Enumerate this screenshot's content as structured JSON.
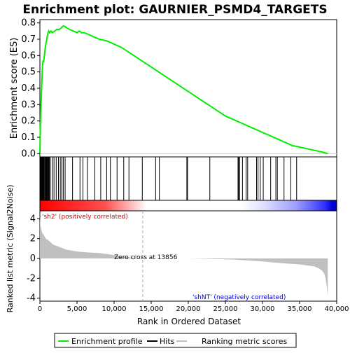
{
  "chart_data": {
    "type": "line",
    "title": "Enrichment plot: GAURNIER_PSMD4_TARGETS",
    "ylabel": "Enrichment score (ES)",
    "es_ylim": [
      -0.02,
      0.82
    ],
    "es_yticks": [
      "0.0",
      "0.1",
      "0.2",
      "0.3",
      "0.4",
      "0.5",
      "0.6",
      "0.7",
      "0.8"
    ],
    "es_ytick_values": [
      0,
      0.1,
      0.2,
      0.3,
      0.4,
      0.5,
      0.6,
      0.7,
      0.8
    ],
    "xlabel": "Rank in Ordered Dataset",
    "xlim": [
      0,
      40000
    ],
    "xticks": [
      "0",
      "5,000",
      "10,000",
      "15,000",
      "20,000",
      "25,000",
      "30,000",
      "35,000",
      "40,000"
    ],
    "xtick_values": [
      0,
      5000,
      10000,
      15000,
      20000,
      25000,
      30000,
      35000,
      40000
    ],
    "ylabel_metric": "Ranked list metric (Signal2Noise)",
    "metric_ylim": [
      -4.3,
      4.8
    ],
    "metric_yticks": [
      "4",
      "2",
      "0",
      "-2",
      "-4"
    ],
    "metric_ytick_values": [
      4,
      2,
      0,
      -2,
      -4
    ],
    "positive_label": "'sh2' (positively correlated)",
    "negative_label": "'shNT' (negatively correlated)",
    "zero_cross_label": "Zero cross at 13856",
    "zero_cross": 13856,
    "dataset_size": 38800,
    "legend": [
      "Enrichment profile",
      "Hits",
      "Ranking metric scores"
    ],
    "legend_colors": {
      "enrichment": "#00ee00",
      "hits": "#000000",
      "metric": "#c0c0c0"
    },
    "series": [
      {
        "name": "Enrichment profile",
        "x": [
          0,
          50,
          100,
          150,
          200,
          250,
          300,
          350,
          400,
          450,
          500,
          600,
          700,
          800,
          900,
          1000,
          1100,
          1200,
          1300,
          1500,
          1700,
          2000,
          2300,
          2600,
          2900,
          3100,
          3300,
          3600,
          4000,
          4500,
          5000,
          5300,
          5600,
          6000,
          6500,
          7000,
          8000,
          9000,
          10000,
          11000,
          12000,
          13000,
          14000,
          15000,
          16000,
          17000,
          18000,
          19000,
          20000,
          21000,
          22000,
          23000,
          24000,
          25000,
          26000,
          27000,
          28000,
          29000,
          30000,
          31000,
          32000,
          33000,
          34000,
          35000,
          36000,
          37000,
          38000,
          38800
        ],
        "y": [
          0.0,
          0.14,
          0.24,
          0.3,
          0.36,
          0.42,
          0.48,
          0.53,
          0.56,
          0.57,
          0.56,
          0.6,
          0.64,
          0.67,
          0.69,
          0.72,
          0.74,
          0.75,
          0.74,
          0.75,
          0.74,
          0.75,
          0.76,
          0.76,
          0.77,
          0.78,
          0.78,
          0.77,
          0.76,
          0.75,
          0.74,
          0.75,
          0.74,
          0.74,
          0.73,
          0.72,
          0.7,
          0.69,
          0.67,
          0.65,
          0.62,
          0.59,
          0.56,
          0.53,
          0.5,
          0.47,
          0.44,
          0.41,
          0.38,
          0.35,
          0.32,
          0.29,
          0.26,
          0.23,
          0.21,
          0.19,
          0.17,
          0.15,
          0.13,
          0.11,
          0.09,
          0.07,
          0.05,
          0.04,
          0.03,
          0.02,
          0.01,
          0.0
        ]
      }
    ],
    "hits": [
      60,
      110,
      170,
      230,
      300,
      360,
      430,
      520,
      600,
      700,
      780,
      860,
      940,
      1010,
      1100,
      1180,
      1270,
      1400,
      1650,
      1900,
      2200,
      2500,
      2750,
      2950,
      3150,
      3400,
      4400,
      5400,
      5800,
      6400,
      7400,
      8200,
      9000,
      9500,
      10400,
      11300,
      12000,
      13800,
      15600,
      16100,
      19800,
      19900,
      22900,
      26700,
      26800,
      26900,
      27300,
      27800,
      28000,
      29200,
      29400,
      29700,
      30100,
      31100,
      31800,
      32000,
      32900,
      33800,
      34600
    ],
    "metric_profile": {
      "x": [
        0,
        50,
        150,
        300,
        500,
        800,
        1200,
        1800,
        2500,
        3500,
        5000,
        6500,
        8000,
        9500,
        10800,
        13856,
        15000,
        20000,
        26000,
        30000,
        33000,
        35000,
        36000,
        37000,
        37600,
        38000,
        38300,
        38500,
        38700,
        38800
      ],
      "y": [
        4.3,
        3.5,
        3.0,
        2.6,
        2.4,
        2.0,
        1.8,
        1.4,
        1.2,
        0.9,
        0.7,
        0.6,
        0.55,
        0.4,
        0.2,
        0.0,
        0.0,
        0.0,
        -0.1,
        -0.3,
        -0.5,
        -0.6,
        -0.7,
        -0.8,
        -1.0,
        -1.2,
        -1.5,
        -2.0,
        -3.0,
        -3.8
      ]
    },
    "color_bar_stops": [
      "#ff0000",
      "#ffd0d0",
      "#ffffff",
      "#d0d0ff",
      "#0000ff"
    ]
  }
}
